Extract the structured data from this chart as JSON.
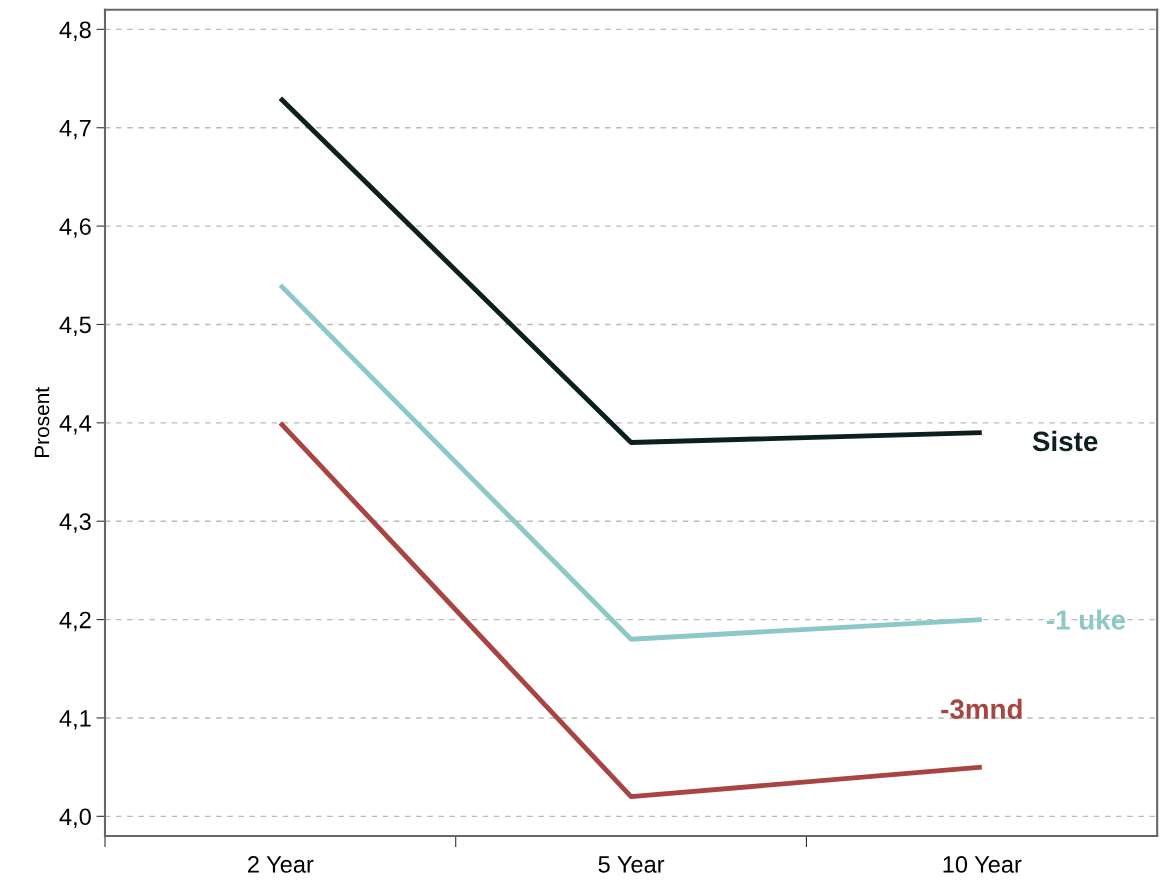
{
  "chart_data": {
    "type": "line",
    "ylabel": "Prosent",
    "categories": [
      "2 Year",
      "5 Year",
      "10 Year"
    ],
    "series": [
      {
        "name": "Siste",
        "color": "#0d1f1f",
        "values": [
          4.73,
          4.38,
          4.39
        ]
      },
      {
        "name": "-1 uke",
        "color": "#8cc8c6",
        "values": [
          4.54,
          4.18,
          4.2
        ]
      },
      {
        "name": "-3mnd",
        "color": "#a84542",
        "values": [
          4.4,
          4.02,
          4.05
        ]
      }
    ],
    "ylim": [
      3.98,
      4.82
    ],
    "yticks": [
      {
        "value": 4.0,
        "label": "4,0"
      },
      {
        "value": 4.1,
        "label": "4,1"
      },
      {
        "value": 4.2,
        "label": "4,2"
      },
      {
        "value": 4.3,
        "label": "4,3"
      },
      {
        "value": 4.4,
        "label": "4,4"
      },
      {
        "value": 4.5,
        "label": "4,5"
      },
      {
        "value": 4.6,
        "label": "4,6"
      },
      {
        "value": 4.7,
        "label": "4,7"
      },
      {
        "value": 4.8,
        "label": "4,8"
      }
    ],
    "grid": "y",
    "legend": false,
    "marker": "none",
    "line_style": "solid"
  }
}
